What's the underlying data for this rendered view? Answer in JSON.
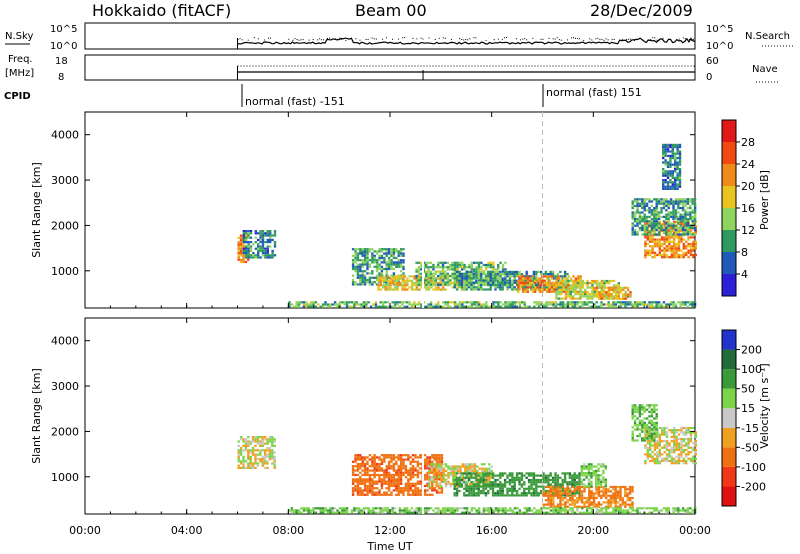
{
  "header": {
    "station": "Hokkaido (fitACF)",
    "beam": "Beam 00",
    "date": "28/Dec/2009"
  },
  "noise_panel": {
    "left_label": "N.Sky",
    "right_label": "N.Search",
    "left_ticks": [
      "10^5",
      "10^0"
    ],
    "right_ticks": [
      "10^5",
      "10^0"
    ]
  },
  "freq_panel": {
    "left_label_1": "Freq.",
    "left_label_2": "[MHz]",
    "left_ticks": [
      "18",
      "8"
    ],
    "right_label": "Nave",
    "right_ticks": [
      "60",
      "0"
    ]
  },
  "cpid": {
    "label": "CPID",
    "programs": [
      {
        "name": "normal (fast) -151",
        "start_hour": 6
      },
      {
        "name": "normal (fast) 151",
        "start_hour": 18
      }
    ]
  },
  "colors": {
    "power": [
      "#2b1fd8",
      "#1f5ab8",
      "#2f9a5f",
      "#8fd45e",
      "#e8c41f",
      "#f08a1a",
      "#f04a12",
      "#e01818"
    ],
    "velocity": [
      "#2233cc",
      "#226c3c",
      "#3a9a3a",
      "#7cd44a",
      "#c8c8c8",
      "#f0a020",
      "#f07010",
      "#f03818",
      "#e01010"
    ]
  },
  "chart_data": [
    {
      "type": "heatmap",
      "name": "power",
      "ylabel": "Slant Range [km]",
      "xlabel": "",
      "ylim": [
        180,
        4500
      ],
      "xlim": [
        0,
        24
      ],
      "y_ticks": [
        "1000",
        "2000",
        "3000",
        "4000"
      ],
      "colorbar_label": "Power [dB]",
      "colorbar_ticks": [
        "4",
        "8",
        "12",
        "16",
        "20",
        "24",
        "28"
      ],
      "regions": [
        {
          "t0": 6.0,
          "t1": 6.4,
          "r0": 1200,
          "r1": 1800,
          "v": 22
        },
        {
          "t0": 6.2,
          "t1": 7.5,
          "r0": 1300,
          "r1": 1900,
          "v": 8
        },
        {
          "t0": 10.5,
          "t1": 12.5,
          "r0": 700,
          "r1": 1500,
          "v": 10
        },
        {
          "t0": 11.5,
          "t1": 15.0,
          "r0": 600,
          "r1": 900,
          "v": 18
        },
        {
          "t0": 13.0,
          "t1": 16.5,
          "r0": 700,
          "r1": 1200,
          "v": 12
        },
        {
          "t0": 14.5,
          "t1": 19.0,
          "r0": 600,
          "r1": 1000,
          "v": 10
        },
        {
          "t0": 17.0,
          "t1": 19.5,
          "r0": 550,
          "r1": 900,
          "v": 22
        },
        {
          "t0": 18.5,
          "t1": 21.0,
          "r0": 400,
          "r1": 800,
          "v": 16
        },
        {
          "t0": 20.0,
          "t1": 21.5,
          "r0": 400,
          "r1": 650,
          "v": 20
        },
        {
          "t0": 22.0,
          "t1": 24.0,
          "r0": 1300,
          "r1": 2100,
          "v": 22
        },
        {
          "t0": 21.5,
          "t1": 24.0,
          "r0": 1800,
          "r1": 2600,
          "v": 10
        },
        {
          "t0": 8.0,
          "t1": 24.0,
          "r0": 190,
          "r1": 330,
          "v": 12
        },
        {
          "t0": 22.7,
          "t1": 23.4,
          "r0": 2800,
          "r1": 3800,
          "v": 8
        }
      ]
    },
    {
      "type": "heatmap",
      "name": "velocity",
      "ylabel": "Slant Range [km]",
      "xlabel": "Time UT",
      "ylim": [
        180,
        4500
      ],
      "xlim": [
        0,
        24
      ],
      "x_ticks": [
        "00:00",
        "04:00",
        "08:00",
        "12:00",
        "16:00",
        "20:00",
        "00:00"
      ],
      "y_ticks": [
        "1000",
        "2000",
        "3000",
        "4000"
      ],
      "colorbar_label": "Velocity [m s⁻¹]",
      "colorbar_ticks": [
        "200",
        "100",
        "50",
        "15",
        "-15",
        "-50",
        "-100",
        "-200"
      ],
      "regions": [
        {
          "t0": 6.0,
          "t1": 7.5,
          "r0": 1200,
          "r1": 1900,
          "v": 0
        },
        {
          "t0": 10.5,
          "t1": 14.0,
          "r0": 600,
          "r1": 1500,
          "v": -60
        },
        {
          "t0": 13.5,
          "t1": 16.0,
          "r0": 800,
          "r1": 1300,
          "v": 0
        },
        {
          "t0": 14.5,
          "t1": 19.5,
          "r0": 600,
          "r1": 1100,
          "v": 60
        },
        {
          "t0": 18.0,
          "t1": 21.5,
          "r0": 350,
          "r1": 800,
          "v": -40
        },
        {
          "t0": 19.5,
          "t1": 20.5,
          "r0": 800,
          "r1": 1300,
          "v": 20
        },
        {
          "t0": 22.0,
          "t1": 24.0,
          "r0": 1300,
          "r1": 2100,
          "v": 0
        },
        {
          "t0": 21.5,
          "t1": 22.5,
          "r0": 1800,
          "r1": 2600,
          "v": 30
        },
        {
          "t0": 8.0,
          "t1": 24.0,
          "r0": 190,
          "r1": 330,
          "v": 20
        }
      ]
    }
  ]
}
